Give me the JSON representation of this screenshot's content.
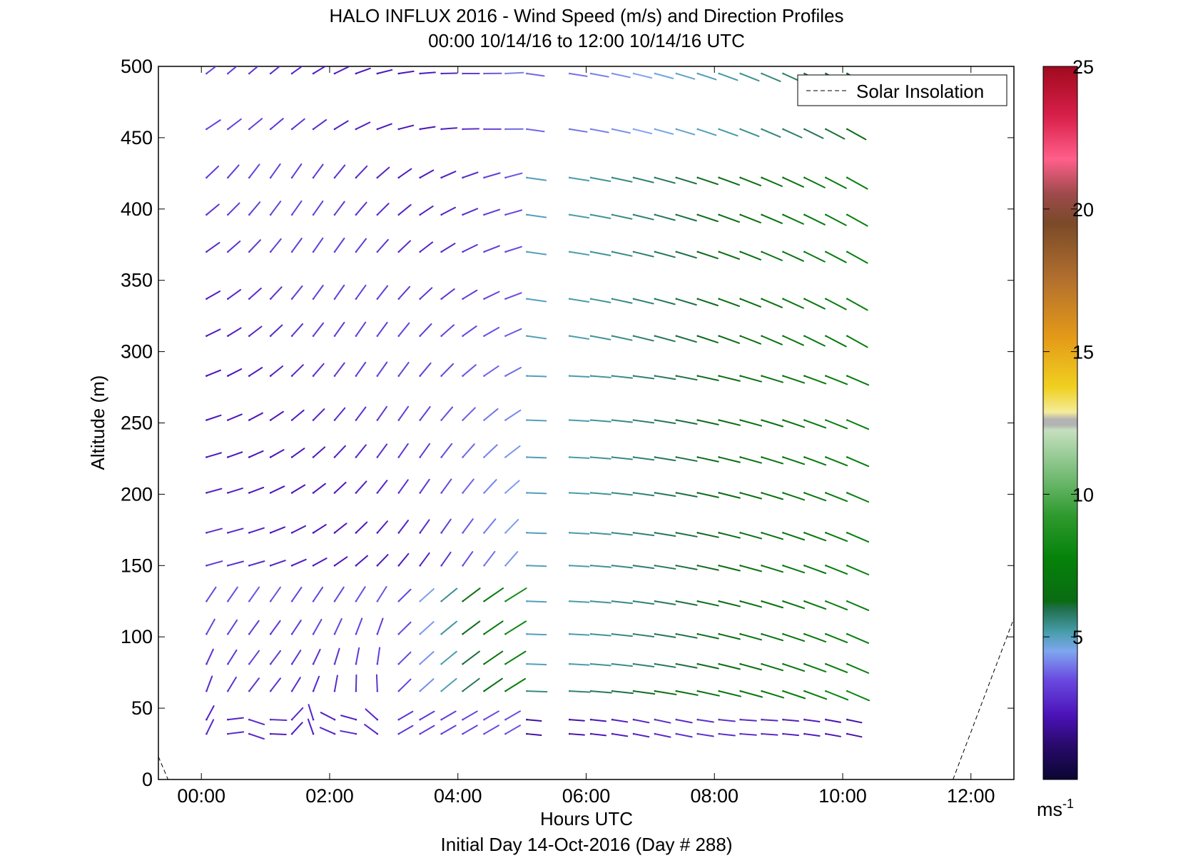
{
  "chart_data": {
    "type": "wind barb profile",
    "title": "HALO INFLUX 2016 - Wind Speed (m/s) and Direction Profiles",
    "subtitle": "00:00 10/14/16 to 12:00 10/14/16  UTC",
    "xlabel": "Hours UTC",
    "xlabel2": "Initial Day 14-Oct-2016 (Day # 288)",
    "ylabel": "Altitude (m)",
    "xlim": [
      -0.67,
      12.67
    ],
    "ylim": [
      0,
      500
    ],
    "xticks": [
      0,
      2,
      4,
      6,
      8,
      10,
      12
    ],
    "xtick_labels": [
      "00:00",
      "02:00",
      "04:00",
      "06:00",
      "08:00",
      "10:00",
      "12:00"
    ],
    "yticks": [
      0,
      50,
      100,
      150,
      200,
      250,
      300,
      350,
      400,
      450,
      500
    ],
    "ytick_labels": [
      "0",
      "50",
      "100",
      "150",
      "200",
      "250",
      "300",
      "350",
      "400",
      "450",
      "500"
    ],
    "legend": {
      "entry": "Solar Insolation",
      "style": "dashed black",
      "location": "top-right"
    },
    "colorbar": {
      "range": [
        0,
        25
      ],
      "ticks": [
        5,
        10,
        15,
        20,
        25
      ],
      "tick_labels": [
        "5",
        "10",
        "15",
        "20",
        "25"
      ],
      "unit_label": "ms",
      "unit_exponent": "-1"
    },
    "altitudes_m": [
      32,
      42,
      62,
      81,
      102,
      125,
      150,
      173,
      201,
      226,
      252,
      283,
      311,
      337,
      370,
      396,
      422,
      456,
      495
    ],
    "time_step_hours": 0.333,
    "time_start_hours": 0.08,
    "time_count": 31,
    "gap_hours": [
      5.08,
      5.42
    ],
    "solar_insolation": [
      {
        "x": [
          -0.67,
          -0.52
        ],
        "y": [
          16,
          0
        ]
      },
      {
        "x": [
          11.72,
          12.67
        ],
        "y": [
          0,
          113
        ]
      }
    ],
    "wind_regimes": [
      {
        "hours": [
          0,
          5
        ],
        "altitude_m": [
          0,
          130
        ],
        "speed_ms": [
          2.5,
          8
        ],
        "direction": "light, rotating with height"
      },
      {
        "hours": [
          0,
          5
        ],
        "altitude_m": [
          130,
          500
        ],
        "speed_ms": [
          2.5,
          4.5
        ],
        "direction": "south-westerly"
      },
      {
        "hours": [
          5,
          12
        ],
        "altitude_m": [
          30,
          45
        ],
        "speed_ms": [
          2.5,
          3
        ],
        "direction": "westerly"
      },
      {
        "hours": [
          5,
          12
        ],
        "altitude_m": [
          50,
          500
        ],
        "speed_ms": [
          4,
          9
        ],
        "direction": "westerly turning north-westerly"
      }
    ]
  }
}
